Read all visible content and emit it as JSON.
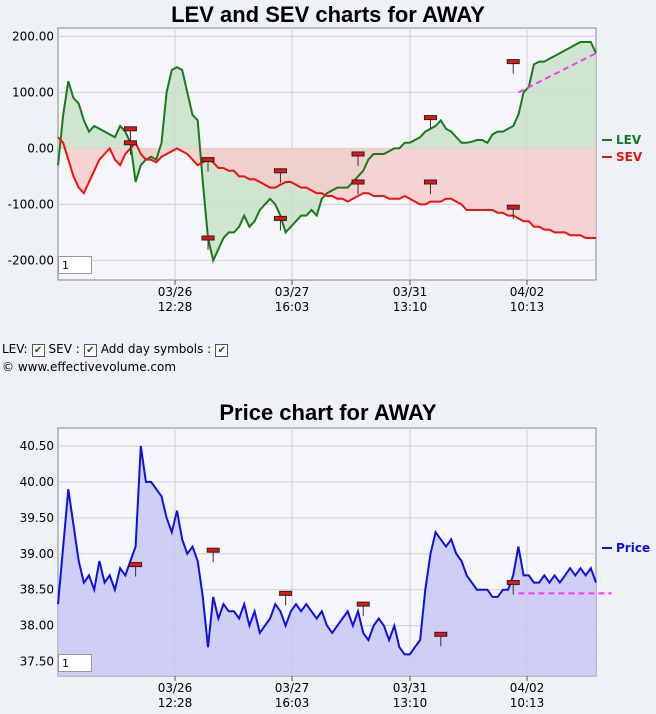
{
  "charts": {
    "lev_sev": {
      "title": "LEV and SEV charts for AWAY",
      "zoom_value": "1",
      "legend": [
        {
          "label": "LEV",
          "color": "#1a7a1a"
        },
        {
          "label": "SEV",
          "color": "#ee1111"
        }
      ]
    },
    "price": {
      "title": "Price chart for AWAY",
      "zoom_value": "1",
      "legend": [
        {
          "label": "Price",
          "color": "#1010dd"
        }
      ]
    }
  },
  "controls": {
    "lev_label": "LEV:",
    "sev_label": "SEV :",
    "day_symbols_label": "Add day symbols :",
    "lev_checked": true,
    "sev_checked": true,
    "day_symbols_checked": true
  },
  "copyright": "© www.effectivevolume.com",
  "chart_data": [
    {
      "type": "line",
      "title": "LEV and SEV charts for AWAY",
      "x_ticks": [
        "03/26\n12:28",
        "03/27\n16:03",
        "03/31\n13:10",
        "04/02\n10:13"
      ],
      "y_ticks": [
        "200.00",
        "100.00",
        "0.00",
        "-100.00",
        "-200.00"
      ],
      "ylim": [
        -235,
        215
      ],
      "grid": true,
      "legend_position": "right",
      "series": [
        {
          "name": "LEV",
          "color": "#1a7a1a",
          "fill": "#c8e2c8",
          "values": [
            -30,
            60,
            120,
            90,
            80,
            50,
            30,
            40,
            35,
            30,
            25,
            20,
            40,
            30,
            10,
            -60,
            -30,
            -20,
            -15,
            -20,
            10,
            100,
            140,
            145,
            140,
            100,
            60,
            50,
            -60,
            -160,
            -200,
            -180,
            -160,
            -150,
            -150,
            -140,
            -120,
            -140,
            -130,
            -110,
            -100,
            -90,
            -100,
            -120,
            -150,
            -140,
            -130,
            -120,
            -120,
            -110,
            -120,
            -90,
            -80,
            -75,
            -70,
            -70,
            -70,
            -60,
            -50,
            -40,
            -20,
            -10,
            -10,
            -10,
            -5,
            0,
            0,
            10,
            10,
            15,
            20,
            30,
            35,
            40,
            50,
            35,
            30,
            20,
            10,
            10,
            12,
            15,
            15,
            10,
            25,
            30,
            30,
            35,
            40,
            60,
            100,
            110,
            150,
            155,
            155,
            160,
            165,
            170,
            175,
            180,
            185,
            190,
            190,
            190,
            170
          ]
        },
        {
          "name": "SEV",
          "color": "#ee1111",
          "fill": "#f4cccc",
          "values": [
            20,
            10,
            -20,
            -50,
            -70,
            -80,
            -60,
            -40,
            -20,
            -10,
            0,
            -20,
            -30,
            -10,
            0,
            10,
            -10,
            -20,
            -20,
            -25,
            -15,
            -10,
            -5,
            0,
            -5,
            -10,
            -20,
            -30,
            -25,
            -20,
            -25,
            -35,
            -35,
            -40,
            -40,
            -50,
            -50,
            -55,
            -55,
            -60,
            -65,
            -70,
            -70,
            -65,
            -60,
            -60,
            -65,
            -70,
            -70,
            -75,
            -80,
            -80,
            -85,
            -85,
            -90,
            -90,
            -95,
            -90,
            -85,
            -80,
            -80,
            -85,
            -85,
            -85,
            -90,
            -90,
            -90,
            -85,
            -90,
            -95,
            -100,
            -100,
            -95,
            -95,
            -95,
            -90,
            -90,
            -95,
            -100,
            -110,
            -110,
            -110,
            -110,
            -110,
            -110,
            -115,
            -115,
            -120,
            -120,
            -125,
            -130,
            -130,
            -140,
            -140,
            -145,
            -145,
            -150,
            -150,
            -150,
            -155,
            -155,
            -155,
            -160,
            -160,
            -160
          ]
        },
        {
          "name": "",
          "color": "#ff33ff",
          "dashed": true,
          "points": [
            [
              89,
              100
            ],
            [
              104,
              170
            ]
          ]
        }
      ],
      "markers": [
        {
          "index": 14,
          "value": 35
        },
        {
          "index": 14,
          "value": 10
        },
        {
          "index": 29,
          "value": -20
        },
        {
          "index": 29,
          "value": -160
        },
        {
          "index": 43,
          "value": -40
        },
        {
          "index": 43,
          "value": -125
        },
        {
          "index": 58,
          "value": -10
        },
        {
          "index": 58,
          "value": -60
        },
        {
          "index": 72,
          "value": 55
        },
        {
          "index": 72,
          "value": -60
        },
        {
          "index": 88,
          "value": 155
        },
        {
          "index": 88,
          "value": -105
        }
      ]
    },
    {
      "type": "area",
      "title": "Price chart for AWAY",
      "x_ticks": [
        "03/26\n12:28",
        "03/27\n16:03",
        "03/31\n13:10",
        "04/02\n10:13"
      ],
      "y_ticks": [
        "40.50",
        "40.00",
        "39.50",
        "39.00",
        "38.50",
        "38.00",
        "37.50"
      ],
      "ylim": [
        37.3,
        40.75
      ],
      "grid": true,
      "legend_position": "right",
      "series": [
        {
          "name": "Price",
          "color": "#1010dd",
          "fill": "#c8c8f4",
          "values": [
            38.3,
            39.1,
            39.9,
            39.4,
            38.9,
            38.6,
            38.7,
            38.5,
            38.9,
            38.6,
            38.7,
            38.5,
            38.8,
            38.7,
            38.9,
            39.1,
            40.5,
            40.0,
            40.0,
            39.9,
            39.8,
            39.5,
            39.3,
            39.6,
            39.2,
            39.0,
            39.1,
            38.9,
            38.4,
            37.7,
            38.4,
            38.1,
            38.3,
            38.2,
            38.2,
            38.1,
            38.3,
            38.0,
            38.2,
            37.9,
            38.0,
            38.1,
            38.3,
            38.2,
            38.0,
            38.2,
            38.3,
            38.2,
            38.3,
            38.2,
            38.1,
            38.2,
            38.0,
            37.9,
            38.0,
            38.1,
            38.2,
            38.0,
            38.2,
            37.9,
            37.8,
            38.0,
            38.1,
            38.0,
            37.8,
            38.0,
            37.7,
            37.6,
            37.6,
            37.7,
            37.8,
            38.5,
            39.0,
            39.3,
            39.2,
            39.1,
            39.2,
            39.0,
            38.9,
            38.7,
            38.6,
            38.5,
            38.5,
            38.5,
            38.4,
            38.4,
            38.5,
            38.5,
            38.7,
            39.1,
            38.7,
            38.7,
            38.6,
            38.6,
            38.7,
            38.6,
            38.7,
            38.6,
            38.7,
            38.8,
            38.7,
            38.8,
            38.7,
            38.8,
            38.6
          ]
        },
        {
          "name": "",
          "color": "#ff33ff",
          "dashed": true,
          "points": [
            [
              89,
              38.45
            ],
            [
              107,
              38.45
            ]
          ]
        }
      ],
      "markers": [
        {
          "index": 15,
          "value": 38.85
        },
        {
          "index": 30,
          "value": 39.05
        },
        {
          "index": 44,
          "value": 38.45
        },
        {
          "index": 59,
          "value": 38.3
        },
        {
          "index": 74,
          "value": 37.88
        },
        {
          "index": 88,
          "value": 38.6
        }
      ]
    }
  ]
}
